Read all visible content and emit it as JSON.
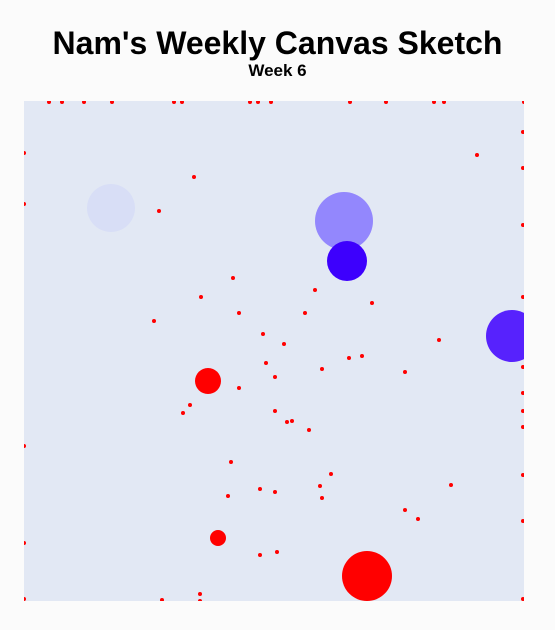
{
  "page": {
    "title": "Nam's Weekly Canvas Sketch",
    "subtitle": "Week 6"
  },
  "colors": {
    "page_background": "#fbfbfb",
    "canvas_background": "#e2e8f4",
    "dot_red": "#ff0000",
    "circle_lavender": "#d8def6",
    "circle_periwinkle": "#9387fd",
    "circle_blue": "#3d00fd",
    "circle_violet": "#5722fd"
  }
}
